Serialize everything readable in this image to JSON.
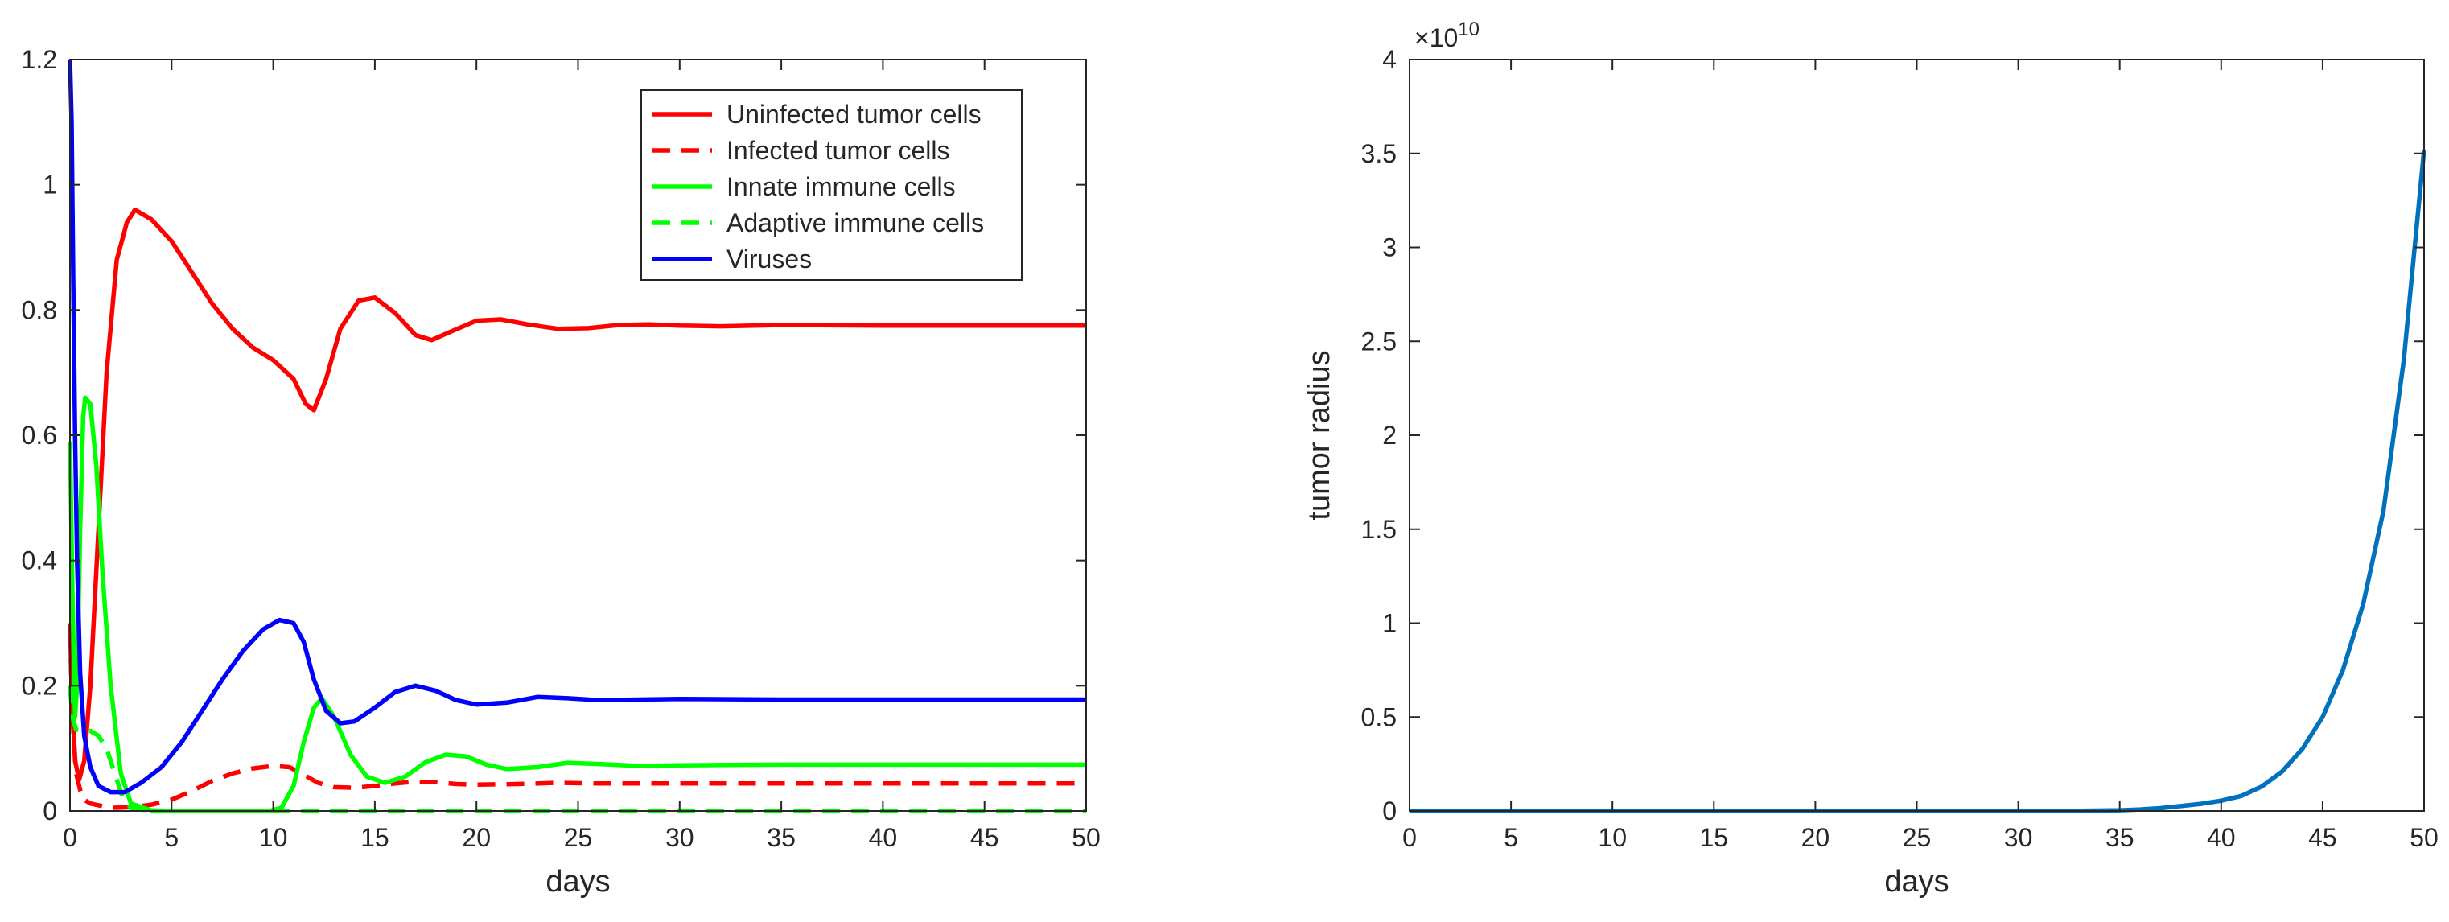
{
  "chart_data": [
    {
      "type": "line",
      "title": "",
      "xlabel": "days",
      "ylabel": "",
      "xlim": [
        0,
        50
      ],
      "ylim": [
        0,
        1.2
      ],
      "xticks": [
        0,
        5,
        10,
        15,
        20,
        25,
        30,
        35,
        40,
        45,
        50
      ],
      "xtick_labels": [
        "0",
        "5",
        "10",
        "15",
        "20",
        "25",
        "30",
        "35",
        "40",
        "45",
        "50"
      ],
      "yticks": [
        0,
        0.2,
        0.4,
        0.6,
        0.8,
        1.0,
        1.2
      ],
      "ytick_labels": [
        "0",
        "0.2",
        "0.4",
        "0.6",
        "0.8",
        "1",
        "1.2"
      ],
      "legend_position": "top-right",
      "series": [
        {
          "name": "Uninfected tumor cells",
          "color": "#ff0000",
          "style": "solid",
          "points": [
            [
              0,
              0.3
            ],
            [
              0.1,
              0.18
            ],
            [
              0.25,
              0.08
            ],
            [
              0.45,
              0.05
            ],
            [
              0.7,
              0.08
            ],
            [
              1.0,
              0.2
            ],
            [
              1.4,
              0.45
            ],
            [
              1.8,
              0.7
            ],
            [
              2.3,
              0.88
            ],
            [
              2.8,
              0.94
            ],
            [
              3.2,
              0.96
            ],
            [
              4,
              0.945
            ],
            [
              5,
              0.91
            ],
            [
              6,
              0.86
            ],
            [
              7,
              0.81
            ],
            [
              8,
              0.77
            ],
            [
              9,
              0.74
            ],
            [
              10,
              0.72
            ],
            [
              11,
              0.69
            ],
            [
              11.6,
              0.65
            ],
            [
              12,
              0.64
            ],
            [
              12.6,
              0.69
            ],
            [
              13.3,
              0.77
            ],
            [
              14.2,
              0.815
            ],
            [
              15,
              0.82
            ],
            [
              16,
              0.795
            ],
            [
              17,
              0.76
            ],
            [
              17.8,
              0.752
            ],
            [
              18.7,
              0.765
            ],
            [
              20,
              0.783
            ],
            [
              21.2,
              0.785
            ],
            [
              22.5,
              0.777
            ],
            [
              24,
              0.77
            ],
            [
              25.5,
              0.771
            ],
            [
              27,
              0.776
            ],
            [
              28.5,
              0.777
            ],
            [
              30,
              0.775
            ],
            [
              32,
              0.774
            ],
            [
              35,
              0.776
            ],
            [
              40,
              0.775
            ],
            [
              45,
              0.775
            ],
            [
              50,
              0.775
            ]
          ]
        },
        {
          "name": "Infected tumor cells",
          "color": "#ff0000",
          "style": "dashed",
          "points": [
            [
              0,
              0.29
            ],
            [
              0.12,
              0.15
            ],
            [
              0.3,
              0.06
            ],
            [
              0.6,
              0.02
            ],
            [
              1.0,
              0.012
            ],
            [
              2,
              0.005
            ],
            [
              3,
              0.006
            ],
            [
              4,
              0.01
            ],
            [
              5,
              0.018
            ],
            [
              6,
              0.032
            ],
            [
              7,
              0.048
            ],
            [
              8,
              0.06
            ],
            [
              9,
              0.068
            ],
            [
              10,
              0.072
            ],
            [
              10.8,
              0.07
            ],
            [
              11.5,
              0.058
            ],
            [
              12.2,
              0.045
            ],
            [
              13,
              0.038
            ],
            [
              14,
              0.037
            ],
            [
              15,
              0.04
            ],
            [
              16,
              0.044
            ],
            [
              17,
              0.047
            ],
            [
              18,
              0.046
            ],
            [
              19,
              0.043
            ],
            [
              20,
              0.042
            ],
            [
              22,
              0.043
            ],
            [
              24,
              0.045
            ],
            [
              26,
              0.044
            ],
            [
              30,
              0.044
            ],
            [
              40,
              0.044
            ],
            [
              50,
              0.044
            ]
          ]
        },
        {
          "name": "Innate immune cells",
          "color": "#00ff00",
          "style": "solid",
          "points": [
            [
              0,
              0.59
            ],
            [
              0.12,
              0.35
            ],
            [
              0.25,
              0.15
            ],
            [
              0.35,
              0.2
            ],
            [
              0.5,
              0.45
            ],
            [
              0.65,
              0.63
            ],
            [
              0.75,
              0.66
            ],
            [
              1.0,
              0.65
            ],
            [
              1.3,
              0.55
            ],
            [
              1.6,
              0.38
            ],
            [
              2.0,
              0.2
            ],
            [
              2.5,
              0.06
            ],
            [
              3,
              0.012
            ],
            [
              4,
              0.001
            ],
            [
              5,
              0
            ],
            [
              8,
              0
            ],
            [
              9.8,
              0
            ],
            [
              10.4,
              0.005
            ],
            [
              11,
              0.04
            ],
            [
              11.5,
              0.11
            ],
            [
              12,
              0.165
            ],
            [
              12.4,
              0.18
            ],
            [
              13,
              0.15
            ],
            [
              13.8,
              0.09
            ],
            [
              14.6,
              0.055
            ],
            [
              15.5,
              0.045
            ],
            [
              16.5,
              0.055
            ],
            [
              17.5,
              0.078
            ],
            [
              18.5,
              0.09
            ],
            [
              19.5,
              0.087
            ],
            [
              20.5,
              0.074
            ],
            [
              21.5,
              0.067
            ],
            [
              23,
              0.07
            ],
            [
              24.5,
              0.077
            ],
            [
              26,
              0.075
            ],
            [
              28,
              0.072
            ],
            [
              30,
              0.073
            ],
            [
              35,
              0.074
            ],
            [
              40,
              0.074
            ],
            [
              45,
              0.074
            ],
            [
              50,
              0.074
            ]
          ]
        },
        {
          "name": "Adaptive immune cells",
          "color": "#00ff00",
          "style": "dashed",
          "points": [
            [
              0,
              0.2
            ],
            [
              0.12,
              0.15
            ],
            [
              0.3,
              0.13
            ],
            [
              0.6,
              0.128
            ],
            [
              1.0,
              0.128
            ],
            [
              1.4,
              0.12
            ],
            [
              1.8,
              0.1
            ],
            [
              2.2,
              0.06
            ],
            [
              2.6,
              0.02
            ],
            [
              3,
              0.005
            ],
            [
              4,
              0
            ],
            [
              10,
              0
            ],
            [
              20,
              0
            ],
            [
              30,
              0
            ],
            [
              40,
              0
            ],
            [
              50,
              0
            ]
          ]
        },
        {
          "name": "Viruses",
          "color": "#0000ff",
          "style": "solid",
          "points": [
            [
              0,
              1.2
            ],
            [
              0.08,
              1.1
            ],
            [
              0.16,
              0.85
            ],
            [
              0.25,
              0.6
            ],
            [
              0.35,
              0.4
            ],
            [
              0.5,
              0.22
            ],
            [
              0.7,
              0.12
            ],
            [
              1.0,
              0.07
            ],
            [
              1.4,
              0.04
            ],
            [
              2,
              0.03
            ],
            [
              2.7,
              0.03
            ],
            [
              3.5,
              0.045
            ],
            [
              4.5,
              0.07
            ],
            [
              5.5,
              0.11
            ],
            [
              6.5,
              0.16
            ],
            [
              7.5,
              0.21
            ],
            [
              8.5,
              0.255
            ],
            [
              9.5,
              0.29
            ],
            [
              10.3,
              0.305
            ],
            [
              11,
              0.3
            ],
            [
              11.5,
              0.27
            ],
            [
              12,
              0.21
            ],
            [
              12.6,
              0.16
            ],
            [
              13.3,
              0.14
            ],
            [
              14,
              0.143
            ],
            [
              15,
              0.165
            ],
            [
              16,
              0.19
            ],
            [
              17,
              0.2
            ],
            [
              18,
              0.192
            ],
            [
              19,
              0.177
            ],
            [
              20,
              0.17
            ],
            [
              21.5,
              0.173
            ],
            [
              23,
              0.182
            ],
            [
              24.5,
              0.18
            ],
            [
              26,
              0.177
            ],
            [
              28,
              0.178
            ],
            [
              30,
              0.179
            ],
            [
              35,
              0.178
            ],
            [
              40,
              0.178
            ],
            [
              45,
              0.178
            ],
            [
              50,
              0.178
            ]
          ]
        }
      ]
    },
    {
      "type": "line",
      "title": "",
      "xlabel": "days",
      "ylabel": "tumor radius",
      "xlim": [
        0,
        50
      ],
      "ylim": [
        0,
        40000000000.0
      ],
      "xticks": [
        0,
        5,
        10,
        15,
        20,
        25,
        30,
        35,
        40,
        45,
        50
      ],
      "xtick_labels": [
        "0",
        "5",
        "10",
        "15",
        "20",
        "25",
        "30",
        "35",
        "40",
        "45",
        "50"
      ],
      "yticks": [
        0,
        5000000000.0,
        10000000000.0,
        15000000000.0,
        20000000000.0,
        25000000000.0,
        30000000000.0,
        35000000000.0,
        40000000000.0
      ],
      "ytick_labels": [
        "0",
        "0.5",
        "1",
        "1.5",
        "2",
        "2.5",
        "3",
        "3.5",
        "4"
      ],
      "y_exponent_label": "×10",
      "y_exponent_power": "10",
      "series": [
        {
          "name": "tumor radius",
          "color": "#0072bd",
          "style": "solid",
          "points": [
            [
              0,
              0
            ],
            [
              5,
              0
            ],
            [
              10,
              0
            ],
            [
              15,
              0
            ],
            [
              20,
              0
            ],
            [
              25,
              0
            ],
            [
              30,
              0
            ],
            [
              33,
              10000000.0
            ],
            [
              35,
              40000000.0
            ],
            [
              36,
              80000000.0
            ],
            [
              37,
              150000000.0
            ],
            [
              38,
              260000000.0
            ],
            [
              39,
              380000000.0
            ],
            [
              40,
              550000000.0
            ],
            [
              41,
              800000000.0
            ],
            [
              42,
              1300000000.0
            ],
            [
              43,
              2100000000.0
            ],
            [
              44,
              3300000000.0
            ],
            [
              45,
              5000000000.0
            ],
            [
              46,
              7500000000.0
            ],
            [
              47,
              11000000000.0
            ],
            [
              48,
              16000000000.0
            ],
            [
              49,
              24000000000.0
            ],
            [
              50,
              35200000000.0
            ]
          ]
        }
      ]
    }
  ]
}
